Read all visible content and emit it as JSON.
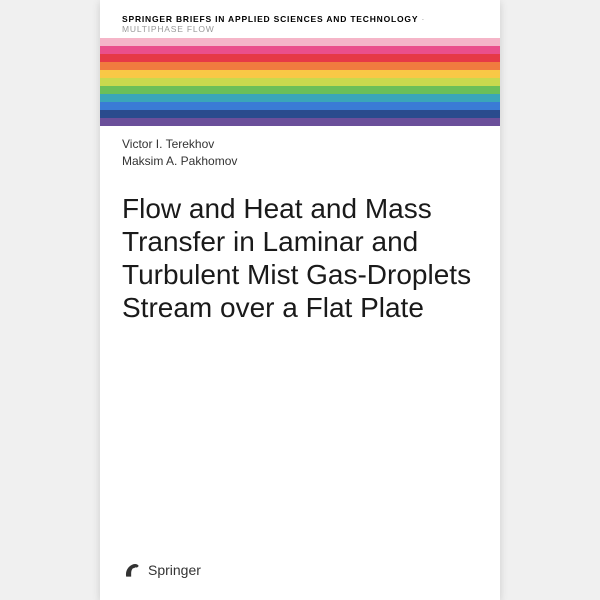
{
  "series": {
    "main": "SPRINGER BRIEFS IN APPLIED SCIENCES AND TECHNOLOGY",
    "sub": " · MULTIPHASE FLOW"
  },
  "stripes": [
    "#f5b5c8",
    "#ea4f8b",
    "#e63946",
    "#f07b3f",
    "#f9c846",
    "#c9d94e",
    "#6bbf59",
    "#3aa6b9",
    "#3a7bd5",
    "#2a4b8d",
    "#6b4f9a"
  ],
  "authors": [
    "Victor I. Terekhov",
    "Maksim A. Pakhomov"
  ],
  "title": "Flow and Heat and Mass Transfer in Laminar and Turbulent Mist Gas-Droplets Stream over a Flat Plate",
  "publisher": "Springer",
  "logo_color": "#333333",
  "typography": {
    "series_fontsize": 8.5,
    "authors_fontsize": 12,
    "title_fontsize": 28,
    "publisher_fontsize": 14
  },
  "layout": {
    "cover_width": 400,
    "cover_height": 600,
    "stripe_height": 8,
    "background": "#ffffff"
  }
}
